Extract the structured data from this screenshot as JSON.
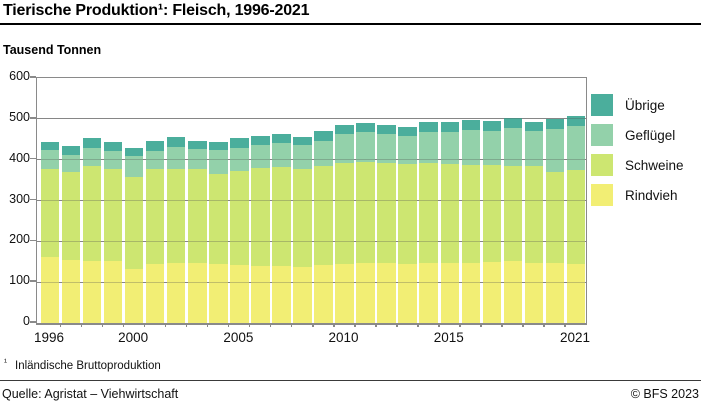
{
  "title": "Tierische Produktion¹: Fleisch, 1996-2021",
  "subtitle": "Tausend Tonnen",
  "footnote": {
    "marker": "¹",
    "text": "Inländische Bruttoproduktion"
  },
  "source": "Quelle: Agristat – Viehwirtschaft",
  "copyright": "© BFS 2023",
  "colors": {
    "uebrige": "#4bae9c",
    "gefluegel": "#93d1aa",
    "schweine": "#cde671",
    "rindvieh": "#f2ee74",
    "frame": "#8a8a8a",
    "gridline": "#9e9e9e",
    "title_rule": "#000000"
  },
  "chart_data": {
    "type": "bar",
    "stacked": true,
    "title": "Tierische Produktion¹: Fleisch, 1996-2021",
    "xlabel": "",
    "ylabel": "Tausend Tonnen",
    "ylim": [
      0,
      600
    ],
    "y_ticks": [
      600,
      500,
      400,
      300,
      200,
      100,
      0
    ],
    "grid": true,
    "legend_position": "right",
    "categories": [
      1996,
      1997,
      1998,
      1999,
      2000,
      2001,
      2002,
      2003,
      2004,
      2005,
      2006,
      2007,
      2008,
      2009,
      2010,
      2011,
      2012,
      2013,
      2014,
      2015,
      2016,
      2017,
      2018,
      2019,
      2020,
      2021
    ],
    "x_axis_labels": [
      1996,
      2000,
      2005,
      2010,
      2015,
      2021
    ],
    "series": [
      {
        "name": "Rindvieh",
        "key": "rindvieh",
        "color": "#f2ee74",
        "values": [
          162,
          154,
          153,
          151,
          133,
          144,
          146,
          148,
          145,
          143,
          140,
          140,
          137,
          141,
          145,
          148,
          146,
          145,
          146,
          147,
          148,
          149,
          151,
          148,
          146,
          145
        ]
      },
      {
        "name": "Schweine",
        "key": "schweine",
        "color": "#cde671",
        "values": [
          216,
          216,
          231,
          225,
          224,
          232,
          232,
          228,
          219,
          230,
          240,
          241,
          241,
          243,
          247,
          246,
          246,
          245,
          245,
          242,
          240,
          237,
          234,
          236,
          225,
          229
        ]
      },
      {
        "name": "Geflügel",
        "key": "gefluegel",
        "color": "#93d1aa",
        "values": [
          45,
          41,
          44,
          46,
          51,
          46,
          54,
          50,
          60,
          56,
          56,
          59,
          58,
          63,
          71,
          73,
          70,
          67,
          78,
          79,
          85,
          85,
          92,
          87,
          103,
          109
        ]
      },
      {
        "name": "Übrige",
        "key": "uebrige",
        "color": "#4bae9c",
        "values": [
          21,
          23,
          24,
          22,
          20,
          25,
          24,
          21,
          20,
          23,
          22,
          23,
          20,
          24,
          22,
          23,
          23,
          23,
          24,
          25,
          24,
          25,
          24,
          22,
          25,
          24
        ]
      }
    ],
    "legend": [
      "Übrige",
      "Geflügel",
      "Schweine",
      "Rindvieh"
    ]
  }
}
